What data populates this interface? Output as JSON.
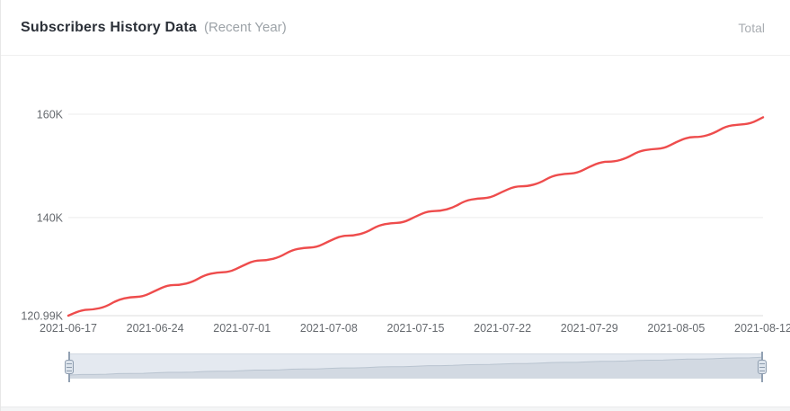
{
  "header": {
    "title": "Subscribers History Data",
    "subtitle": "(Recent Year)",
    "right_label": "Total"
  },
  "colors": {
    "line": "#ee4c4c",
    "grid_line": "#ececec",
    "axis_line": "#dedede",
    "axis_text": "#65696e",
    "slider_area_fill": "#d2d9e2",
    "slider_area_line": "#b9c4d0"
  },
  "chart_data": {
    "type": "line",
    "title": "Subscribers History Data (Recent Year)",
    "xlabel": "",
    "ylabel": "",
    "grid": true,
    "legend_position": "none",
    "ylim": [
      120990,
      160000
    ],
    "y_ticks": [
      {
        "label": "120.99K",
        "value": 120990
      },
      {
        "label": "140K",
        "value": 140000
      },
      {
        "label": "160K",
        "value": 160000
      }
    ],
    "x_tick_labels": [
      "2021-06-17",
      "2021-06-24",
      "2021-07-01",
      "2021-07-08",
      "2021-07-15",
      "2021-07-22",
      "2021-07-29",
      "2021-08-05",
      "2021-08-12"
    ],
    "x": [
      "2021-06-17",
      "2021-06-18",
      "2021-06-19",
      "2021-06-20",
      "2021-06-21",
      "2021-06-22",
      "2021-06-23",
      "2021-06-24",
      "2021-06-25",
      "2021-06-26",
      "2021-06-27",
      "2021-06-28",
      "2021-06-29",
      "2021-06-30",
      "2021-07-01",
      "2021-07-02",
      "2021-07-03",
      "2021-07-04",
      "2021-07-05",
      "2021-07-06",
      "2021-07-07",
      "2021-07-08",
      "2021-07-09",
      "2021-07-10",
      "2021-07-11",
      "2021-07-12",
      "2021-07-13",
      "2021-07-14",
      "2021-07-15",
      "2021-07-16",
      "2021-07-17",
      "2021-07-18",
      "2021-07-19",
      "2021-07-20",
      "2021-07-21",
      "2021-07-22",
      "2021-07-23",
      "2021-07-24",
      "2021-07-25",
      "2021-07-26",
      "2021-07-27",
      "2021-07-28",
      "2021-07-29",
      "2021-07-30",
      "2021-07-31",
      "2021-08-01",
      "2021-08-02",
      "2021-08-03",
      "2021-08-04",
      "2021-08-05",
      "2021-08-06",
      "2021-08-07",
      "2021-08-08",
      "2021-08-09",
      "2021-08-10",
      "2021-08-11",
      "2021-08-12"
    ],
    "values": [
      120990,
      122112,
      122159,
      122694,
      124083,
      124595,
      124652,
      125792,
      126896,
      126932,
      127491,
      128879,
      129369,
      129436,
      130595,
      131679,
      131705,
      132289,
      133675,
      134142,
      134222,
      135397,
      136462,
      136482,
      137086,
      138470,
      138915,
      139007,
      140200,
      141243,
      141256,
      141884,
      143266,
      143688,
      143793,
      145002,
      146025,
      146031,
      146683,
      148060,
      148460,
      148580,
      149804,
      150807,
      150806,
      151481,
      152854,
      153233,
      153367,
      154606,
      155587,
      155582,
      156281,
      157648,
      158006,
      158155,
      159408
    ],
    "datazoom": {
      "start_label": "2021-06-17",
      "end_label": "2021-08-12"
    }
  }
}
